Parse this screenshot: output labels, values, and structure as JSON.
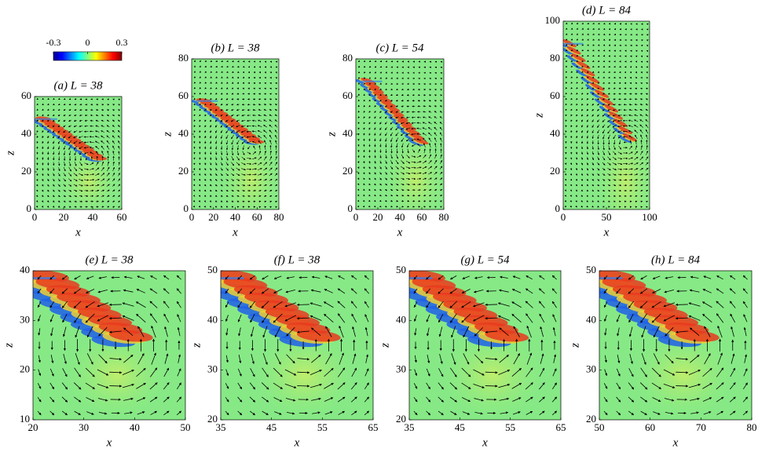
{
  "chart_data": [
    {
      "type": "colorbar",
      "clim": [
        -0.3,
        0.3
      ],
      "ticks": [
        -0.3,
        0,
        0.3
      ]
    },
    {
      "type": "quiver",
      "title": "(a) L = 38",
      "xlabel": "x",
      "ylabel": "z",
      "xlim": [
        0,
        60
      ],
      "ylim": [
        0,
        60
      ],
      "xticks": [
        0,
        20,
        40,
        60
      ],
      "yticks": [
        0,
        20,
        40,
        60
      ]
    },
    {
      "type": "quiver",
      "title": "(b) L = 38",
      "xlabel": "x",
      "ylabel": "z",
      "xlim": [
        0,
        80
      ],
      "ylim": [
        0,
        80
      ],
      "xticks": [
        0,
        20,
        40,
        60,
        80
      ],
      "yticks": [
        0,
        20,
        40,
        60,
        80
      ]
    },
    {
      "type": "quiver",
      "title": "(c) L = 54",
      "xlabel": "x",
      "ylabel": "z",
      "xlim": [
        0,
        80
      ],
      "ylim": [
        0,
        80
      ],
      "xticks": [
        0,
        20,
        40,
        60,
        80
      ],
      "yticks": [
        0,
        20,
        40,
        60,
        80
      ]
    },
    {
      "type": "quiver",
      "title": "(d) L = 84",
      "xlabel": "x",
      "ylabel": "z",
      "xlim": [
        0,
        100
      ],
      "ylim": [
        0,
        100
      ],
      "xticks": [
        0,
        50,
        100
      ],
      "yticks": [
        0,
        20,
        40,
        60,
        80,
        100
      ]
    },
    {
      "type": "quiver",
      "title": "(e) L = 38",
      "xlabel": "x",
      "ylabel": "z",
      "xlim": [
        20,
        50
      ],
      "ylim": [
        10,
        40
      ],
      "xticks": [
        20,
        30,
        40,
        50
      ],
      "yticks": [
        10,
        20,
        30,
        40
      ]
    },
    {
      "type": "quiver",
      "title": "(f) L = 38",
      "xlabel": "x",
      "ylabel": "z",
      "xlim": [
        35,
        65
      ],
      "ylim": [
        20,
        50
      ],
      "xticks": [
        35,
        45,
        55,
        65
      ],
      "yticks": [
        20,
        30,
        40,
        50
      ]
    },
    {
      "type": "quiver",
      "title": "(g) L = 54",
      "xlabel": "x",
      "ylabel": "z",
      "xlim": [
        35,
        65
      ],
      "ylim": [
        20,
        50
      ],
      "xticks": [
        35,
        45,
        55,
        65
      ],
      "yticks": [
        20,
        30,
        40,
        50
      ]
    },
    {
      "type": "quiver",
      "title": "(h) L = 84",
      "xlabel": "x",
      "ylabel": "z",
      "xlim": [
        50,
        80
      ],
      "ylim": [
        20,
        50
      ],
      "xticks": [
        50,
        60,
        70,
        80
      ],
      "yticks": [
        20,
        30,
        40,
        50
      ]
    }
  ]
}
